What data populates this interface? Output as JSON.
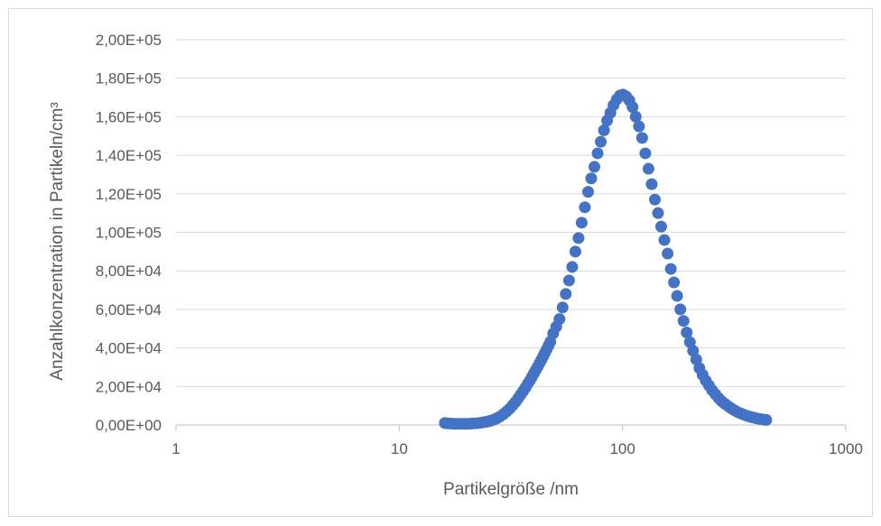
{
  "chart_data": {
    "type": "scatter",
    "title": "",
    "xlabel": "Partikelgröße /nm",
    "ylabel": "Anzahlkonzentration in Partikeln/cm³",
    "x_scale": "log",
    "xlim": [
      1,
      1000
    ],
    "ylim": [
      0,
      200000
    ],
    "x_ticks": [
      "1",
      "10",
      "100",
      "1000"
    ],
    "y_ticks": [
      "0,00E+00",
      "2,00E+04",
      "4,00E+04",
      "6,00E+04",
      "8,00E+04",
      "1,00E+05",
      "1,20E+05",
      "1,40E+05",
      "1,60E+05",
      "1,80E+05",
      "2,00E+05"
    ],
    "grid": "horizontal",
    "marker_color": "#4472c4",
    "series": [
      {
        "x": [
          16.0,
          16.5,
          17.1,
          17.7,
          18.3,
          18.9,
          19.5,
          20.2,
          20.9,
          21.6,
          22.3,
          23.1,
          23.9,
          24.7,
          25.5,
          26.4,
          27.3,
          28.2,
          29.2,
          30.2,
          31.2,
          32.2,
          33.2,
          34.1,
          35.0,
          35.9,
          36.8,
          37.6,
          38.5,
          39.3,
          40.1,
          40.9,
          41.7,
          42.5,
          43.3,
          44.1,
          44.9,
          45.7,
          46.6,
          47.5,
          48.9,
          50.5,
          52.2,
          53.9,
          55.7,
          57.6,
          59.5,
          61.5,
          63.5,
          65.6,
          67.8,
          70.1,
          72.4,
          74.8,
          77.3,
          79.9,
          82.6,
          85.3,
          88.2,
          91.1,
          94.2,
          97.3,
          100.5,
          103.9,
          107.3,
          110.9,
          114.6,
          118.5,
          122.4,
          126.5,
          130.7,
          135.1,
          139.6,
          144.2,
          149.0,
          154.0,
          159.2,
          164.5,
          170.0,
          175.6,
          181.5,
          187.6,
          193.8,
          200.3,
          207.0,
          213.9,
          221.0,
          228.4,
          236.0,
          243.9,
          252.0,
          260.4,
          269.1,
          278.1,
          287.4,
          297.0,
          306.9,
          317.1,
          327.7,
          338.7,
          350.0,
          361.7,
          373.7,
          386.2,
          399.1,
          412.4,
          426.2,
          440.4
        ],
        "y": [
          1000,
          800,
          700,
          600,
          600,
          600,
          600,
          600,
          700,
          800,
          900,
          1100,
          1400,
          1700,
          2100,
          2700,
          3400,
          4300,
          5500,
          6900,
          8400,
          10200,
          12000,
          13900,
          15800,
          17600,
          19500,
          21300,
          23100,
          25000,
          26800,
          28500,
          30300,
          32100,
          33800,
          35600,
          37400,
          39200,
          41200,
          43200,
          47500,
          51000,
          55000,
          61000,
          68000,
          75000,
          82000,
          90000,
          97000,
          105000,
          113000,
          121000,
          128000,
          134000,
          141000,
          147000,
          153000,
          158000,
          162000,
          166000,
          169000,
          171000,
          171500,
          170500,
          168500,
          165000,
          160000,
          155000,
          149000,
          141000,
          133000,
          125000,
          117000,
          110000,
          103000,
          96000,
          89000,
          81000,
          74000,
          67000,
          60000,
          54000,
          48000,
          43000,
          38500,
          34000,
          29500,
          26000,
          23000,
          20500,
          18000,
          16000,
          14000,
          12300,
          11000,
          9800,
          8600,
          7600,
          6700,
          6000,
          5300,
          4700,
          4200,
          3800,
          3400,
          3100,
          2800,
          2600
        ]
      }
    ]
  }
}
